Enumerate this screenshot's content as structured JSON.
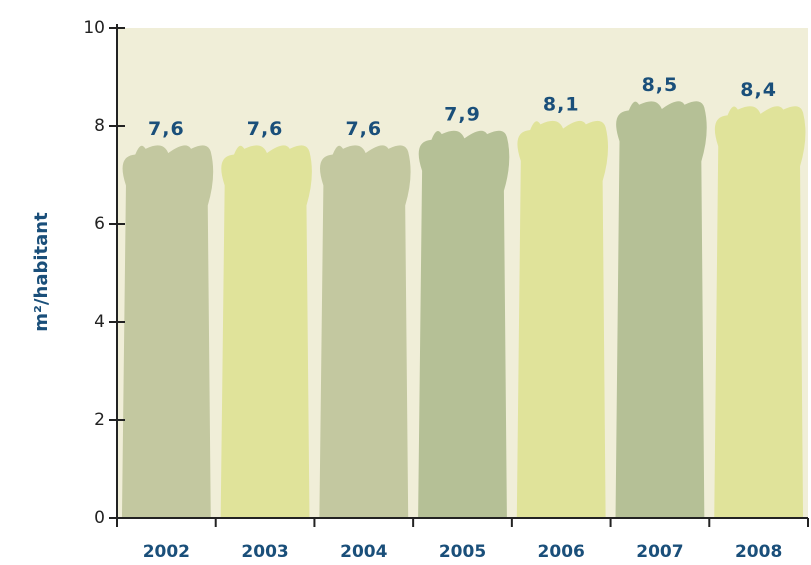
{
  "chart_data": {
    "type": "bar",
    "y_label": "m²/habitant",
    "categories": [
      "2002",
      "2003",
      "2004",
      "2005",
      "2006",
      "2007",
      "2008"
    ],
    "values": [
      7.6,
      7.6,
      7.6,
      7.9,
      8.1,
      8.5,
      8.4
    ],
    "value_labels": [
      "7,6",
      "7,6",
      "7,6",
      "7,9",
      "8,1",
      "8,5",
      "8,4"
    ],
    "colors": [
      "#c3c8a0",
      "#e0e39a",
      "#c3c8a0",
      "#b5c096",
      "#e0e39a",
      "#b5c096",
      "#e0e39a"
    ],
    "ylim": [
      0,
      10
    ],
    "yticks": [
      0,
      2,
      4,
      6,
      8,
      10
    ]
  }
}
